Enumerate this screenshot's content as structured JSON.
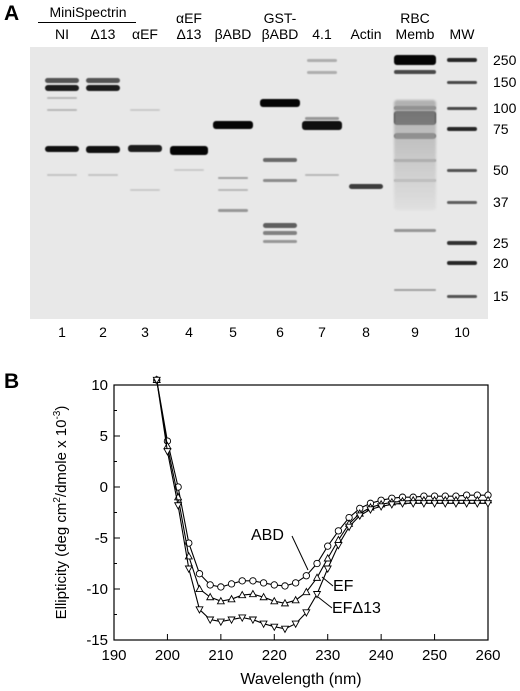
{
  "panelA": {
    "label": "A",
    "group_label": "MiniSpectrin",
    "lane_headers": [
      {
        "lines": [
          "NI"
        ]
      },
      {
        "lines": [
          "Δ13"
        ]
      },
      {
        "lines": [
          "αEF"
        ]
      },
      {
        "lines": [
          "αEF",
          "Δ13"
        ]
      },
      {
        "lines": [
          "βABD"
        ]
      },
      {
        "lines": [
          "GST-",
          "βABD"
        ]
      },
      {
        "lines": [
          "4.1"
        ]
      },
      {
        "lines": [
          "Actin"
        ]
      },
      {
        "lines": [
          "RBC",
          "Memb"
        ]
      },
      {
        "lines": [
          "MW"
        ]
      }
    ],
    "lane_numbers": [
      "1",
      "2",
      "3",
      "4",
      "5",
      "6",
      "7",
      "8",
      "9",
      "10"
    ],
    "mw_markers": [
      "250",
      "150",
      "100",
      "75",
      "50",
      "37",
      "25",
      "20",
      "15"
    ]
  },
  "panelB": {
    "label": "B",
    "chart_data": {
      "type": "line",
      "xlabel": "Wavelength (nm)",
      "ylabel_parts": [
        "Ellipticity (deg cm",
        "2",
        "/dmole x 10",
        "-3",
        ")"
      ],
      "xlim": [
        190,
        260
      ],
      "ylim": [
        -15,
        10
      ],
      "xticks": [
        "190",
        "200",
        "210",
        "220",
        "230",
        "240",
        "250",
        "260"
      ],
      "yticks": [
        "10",
        "5",
        "0",
        "-5",
        "-10",
        "-15"
      ],
      "series": [
        {
          "name": "ABD",
          "marker": "circle",
          "x": [
            198,
            200,
            202,
            204,
            206,
            208,
            210,
            212,
            214,
            216,
            218,
            220,
            222,
            224,
            226,
            228,
            230,
            232,
            234,
            236,
            238,
            240,
            242,
            244,
            246,
            248,
            250,
            252,
            254,
            256,
            258,
            260
          ],
          "y": [
            10.5,
            4.5,
            0.0,
            -5.5,
            -8.5,
            -9.6,
            -9.8,
            -9.5,
            -9.2,
            -9.2,
            -9.4,
            -9.6,
            -9.7,
            -9.4,
            -8.7,
            -7.5,
            -5.8,
            -4.3,
            -3.0,
            -2.1,
            -1.6,
            -1.3,
            -1.1,
            -1.0,
            -1.0,
            -0.9,
            -0.9,
            -0.9,
            -0.9,
            -0.8,
            -0.8,
            -0.8
          ]
        },
        {
          "name": "EF",
          "marker": "triangle-up",
          "x": [
            198,
            200,
            202,
            204,
            206,
            208,
            210,
            212,
            214,
            216,
            218,
            220,
            222,
            224,
            226,
            228,
            230,
            232,
            234,
            236,
            238,
            240,
            242,
            244,
            246,
            248,
            250,
            252,
            254,
            256,
            258,
            260
          ],
          "y": [
            10.5,
            4.0,
            -1.0,
            -6.8,
            -10.0,
            -10.8,
            -11.2,
            -11.0,
            -10.6,
            -10.5,
            -10.8,
            -11.2,
            -11.4,
            -11.1,
            -10.3,
            -8.9,
            -7.0,
            -5.2,
            -3.6,
            -2.6,
            -2.0,
            -1.7,
            -1.5,
            -1.4,
            -1.3,
            -1.3,
            -1.3,
            -1.3,
            -1.3,
            -1.3,
            -1.3,
            -1.3
          ]
        },
        {
          "name": "EFΔ13",
          "marker": "triangle-down",
          "x": [
            198,
            200,
            202,
            204,
            206,
            208,
            210,
            212,
            214,
            216,
            218,
            220,
            222,
            224,
            226,
            228,
            230,
            232,
            234,
            236,
            238,
            240,
            242,
            244,
            246,
            248,
            250,
            252,
            254,
            256,
            258,
            260
          ],
          "y": [
            10.5,
            3.5,
            -1.8,
            -8.0,
            -12.0,
            -13.0,
            -13.2,
            -13.0,
            -12.8,
            -13.0,
            -13.4,
            -13.7,
            -13.9,
            -13.4,
            -12.3,
            -10.5,
            -8.0,
            -5.7,
            -3.9,
            -2.8,
            -2.2,
            -1.9,
            -1.7,
            -1.6,
            -1.6,
            -1.6,
            -1.6,
            -1.6,
            -1.6,
            -1.6,
            -1.6,
            -1.6
          ]
        }
      ],
      "annotations": [
        "ABD",
        "EF",
        "EFΔ13"
      ]
    }
  }
}
